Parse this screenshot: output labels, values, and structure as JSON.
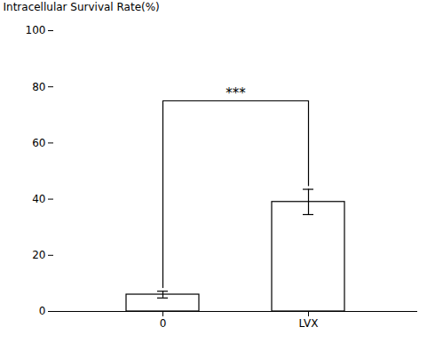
{
  "chart_data": {
    "type": "bar",
    "categories": [
      "0",
      "LVX"
    ],
    "values": [
      6.0,
      39.0
    ],
    "errors": [
      1.2,
      4.5
    ],
    "color": "white",
    "ylabel": "Intracellular Survival Rate(%)",
    "ylim": [
      0,
      100
    ],
    "yticks": [
      0,
      20,
      40,
      60,
      80,
      100
    ],
    "grid": false,
    "annotations": [
      {
        "type": "bracket",
        "text": "***",
        "x1": "0",
        "x2": "LVX",
        "y": 75,
        "text_y": 76,
        "y1": 8.2,
        "y2": 44.5
      }
    ]
  }
}
